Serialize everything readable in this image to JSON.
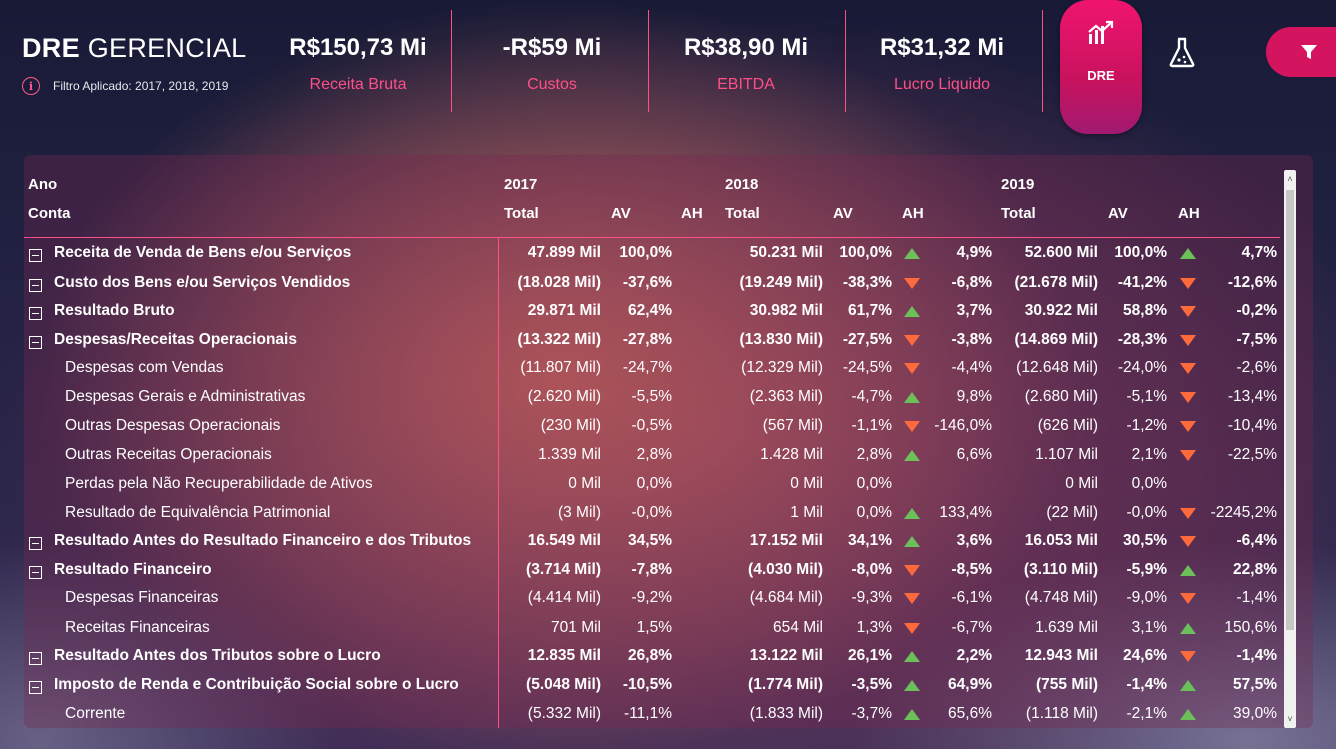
{
  "header": {
    "title_bold": "DRE",
    "title_light": "GERENCIAL",
    "filter_text": "Filtro Aplicado: 2017, 2018, 2019",
    "info_symbol": "i",
    "kpis": [
      {
        "value": "R$150,73 Mi",
        "label": "Receita Bruta"
      },
      {
        "value": "-R$59 Mi",
        "label": "Custos"
      },
      {
        "value": "R$38,90 Mi",
        "label": "EBITDA"
      },
      {
        "value": "R$31,32 Mi",
        "label": "Lucro Liquido"
      }
    ],
    "dre_button_label": "DRE",
    "icons": {
      "dre": "chart-trend-icon",
      "flask": "flask-icon",
      "filter": "filter-icon",
      "info": "info-icon",
      "expand": "collapse-minus-icon"
    },
    "accent_color": "#ff4f86",
    "button_color": "#d4145f"
  },
  "table": {
    "header_row1": {
      "label": "Ano",
      "years": [
        "2017",
        "2018",
        "2019"
      ]
    },
    "header_row2": {
      "label": "Conta",
      "cols": [
        "Total",
        "AV",
        "AH"
      ]
    },
    "rows": [
      {
        "name": "Receita de Venda de Bens e/ou Serviços",
        "bold": true,
        "y17": [
          "47.899 Mil",
          "100,0%",
          ""
        ],
        "y18": [
          "50.231 Mil",
          "100,0%",
          "up",
          "4,9%"
        ],
        "y19": [
          "52.600 Mil",
          "100,0%",
          "up",
          "4,7%"
        ]
      },
      {
        "name": "Custo dos Bens e/ou Serviços Vendidos",
        "bold": true,
        "y17": [
          "(18.028 Mil)",
          "-37,6%",
          ""
        ],
        "y18": [
          "(19.249 Mil)",
          "-38,3%",
          "down",
          "-6,8%"
        ],
        "y19": [
          "(21.678 Mil)",
          "-41,2%",
          "down",
          "-12,6%"
        ]
      },
      {
        "name": "Resultado Bruto",
        "bold": true,
        "y17": [
          "29.871 Mil",
          "62,4%",
          ""
        ],
        "y18": [
          "30.982 Mil",
          "61,7%",
          "up",
          "3,7%"
        ],
        "y19": [
          "30.922 Mil",
          "58,8%",
          "down",
          "-0,2%"
        ]
      },
      {
        "name": "Despesas/Receitas Operacionais",
        "bold": true,
        "y17": [
          "(13.322 Mil)",
          "-27,8%",
          ""
        ],
        "y18": [
          "(13.830 Mil)",
          "-27,5%",
          "down",
          "-3,8%"
        ],
        "y19": [
          "(14.869 Mil)",
          "-28,3%",
          "down",
          "-7,5%"
        ]
      },
      {
        "name": "Despesas com Vendas",
        "bold": false,
        "y17": [
          "(11.807 Mil)",
          "-24,7%",
          ""
        ],
        "y18": [
          "(12.329 Mil)",
          "-24,5%",
          "down",
          "-4,4%"
        ],
        "y19": [
          "(12.648 Mil)",
          "-24,0%",
          "down",
          "-2,6%"
        ]
      },
      {
        "name": "Despesas Gerais e Administrativas",
        "bold": false,
        "y17": [
          "(2.620 Mil)",
          "-5,5%",
          ""
        ],
        "y18": [
          "(2.363 Mil)",
          "-4,7%",
          "up",
          "9,8%"
        ],
        "y19": [
          "(2.680 Mil)",
          "-5,1%",
          "down",
          "-13,4%"
        ]
      },
      {
        "name": "Outras Despesas Operacionais",
        "bold": false,
        "y17": [
          "(230 Mil)",
          "-0,5%",
          ""
        ],
        "y18": [
          "(567 Mil)",
          "-1,1%",
          "down",
          "-146,0%"
        ],
        "y19": [
          "(626 Mil)",
          "-1,2%",
          "down",
          "-10,4%"
        ]
      },
      {
        "name": "Outras Receitas Operacionais",
        "bold": false,
        "y17": [
          "1.339 Mil",
          "2,8%",
          ""
        ],
        "y18": [
          "1.428 Mil",
          "2,8%",
          "up",
          "6,6%"
        ],
        "y19": [
          "1.107 Mil",
          "2,1%",
          "down",
          "-22,5%"
        ]
      },
      {
        "name": "Perdas pela Não Recuperabilidade de Ativos",
        "bold": false,
        "y17": [
          "0 Mil",
          "0,0%",
          ""
        ],
        "y18": [
          "0 Mil",
          "0,0%",
          "",
          ""
        ],
        "y19": [
          "0 Mil",
          "0,0%",
          "",
          ""
        ]
      },
      {
        "name": "Resultado de Equivalência Patrimonial",
        "bold": false,
        "y17": [
          "(3 Mil)",
          "-0,0%",
          ""
        ],
        "y18": [
          "1 Mil",
          "0,0%",
          "up",
          "133,4%"
        ],
        "y19": [
          "(22 Mil)",
          "-0,0%",
          "down",
          "-2245,2%"
        ]
      },
      {
        "name": "Resultado Antes do Resultado Financeiro e dos Tributos",
        "bold": true,
        "y17": [
          "16.549 Mil",
          "34,5%",
          ""
        ],
        "y18": [
          "17.152 Mil",
          "34,1%",
          "up",
          "3,6%"
        ],
        "y19": [
          "16.053 Mil",
          "30,5%",
          "down",
          "-6,4%"
        ]
      },
      {
        "name": "Resultado Financeiro",
        "bold": true,
        "y17": [
          "(3.714 Mil)",
          "-7,8%",
          ""
        ],
        "y18": [
          "(4.030 Mil)",
          "-8,0%",
          "down",
          "-8,5%"
        ],
        "y19": [
          "(3.110 Mil)",
          "-5,9%",
          "up",
          "22,8%"
        ]
      },
      {
        "name": "Despesas Financeiras",
        "bold": false,
        "y17": [
          "(4.414 Mil)",
          "-9,2%",
          ""
        ],
        "y18": [
          "(4.684 Mil)",
          "-9,3%",
          "down",
          "-6,1%"
        ],
        "y19": [
          "(4.748 Mil)",
          "-9,0%",
          "down",
          "-1,4%"
        ]
      },
      {
        "name": "Receitas Financeiras",
        "bold": false,
        "y17": [
          "701 Mil",
          "1,5%",
          ""
        ],
        "y18": [
          "654 Mil",
          "1,3%",
          "down",
          "-6,7%"
        ],
        "y19": [
          "1.639 Mil",
          "3,1%",
          "up",
          "150,6%"
        ]
      },
      {
        "name": "Resultado Antes dos Tributos sobre o Lucro",
        "bold": true,
        "y17": [
          "12.835 Mil",
          "26,8%",
          ""
        ],
        "y18": [
          "13.122 Mil",
          "26,1%",
          "up",
          "2,2%"
        ],
        "y19": [
          "12.943 Mil",
          "24,6%",
          "down",
          "-1,4%"
        ]
      },
      {
        "name": "Imposto de Renda e Contribuição Social sobre o Lucro",
        "bold": true,
        "y17": [
          "(5.048 Mil)",
          "-10,5%",
          ""
        ],
        "y18": [
          "(1.774 Mil)",
          "-3,5%",
          "up",
          "64,9%"
        ],
        "y19": [
          "(755 Mil)",
          "-1,4%",
          "up",
          "57,5%"
        ]
      },
      {
        "name": "Corrente",
        "bold": false,
        "y17": [
          "(5.332 Mil)",
          "-11,1%",
          ""
        ],
        "y18": [
          "(1.833 Mil)",
          "-3,7%",
          "up",
          "65,6%"
        ],
        "y19": [
          "(1.118 Mil)",
          "-2,1%",
          "up",
          "39,0%"
        ]
      }
    ]
  },
  "scrollbar": {
    "up_arrow": "˄",
    "down_arrow": "˅"
  }
}
